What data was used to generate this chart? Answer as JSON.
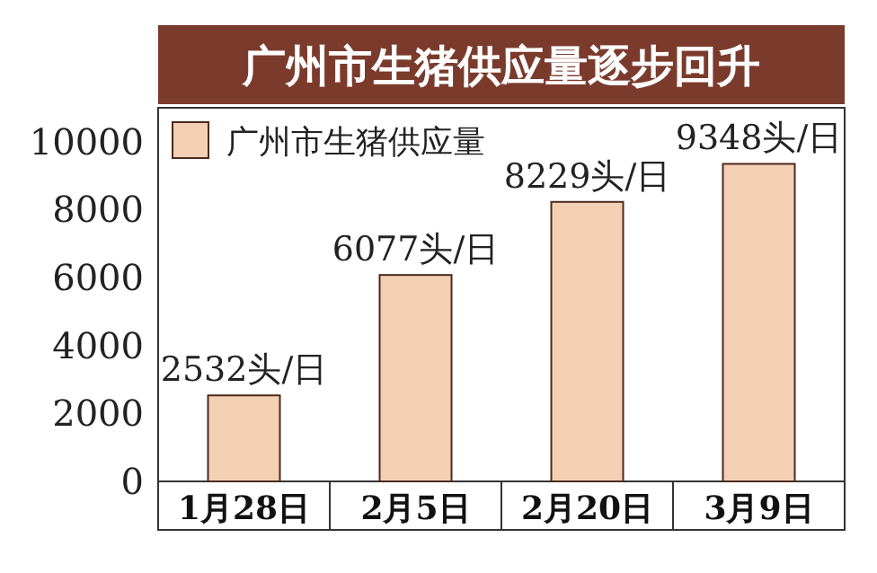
{
  "chart_data": {
    "type": "bar",
    "title": "广州市生猪供应量逐步回升",
    "categories": [
      "1月28日",
      "2月5日",
      "2月20日",
      "3月9日"
    ],
    "series": [
      {
        "name": "广州市生猪供应量",
        "color": "#f3cfb4",
        "values": [
          2532,
          6077,
          8229,
          9348
        ],
        "value_labels": [
          "2532头/日",
          "6077头/日",
          "8229头/日",
          "9348头/日"
        ]
      }
    ],
    "ylim": [
      0,
      11000
    ],
    "yticks": [
      0,
      2000,
      4000,
      6000,
      8000,
      10000
    ],
    "legend": "top left"
  }
}
